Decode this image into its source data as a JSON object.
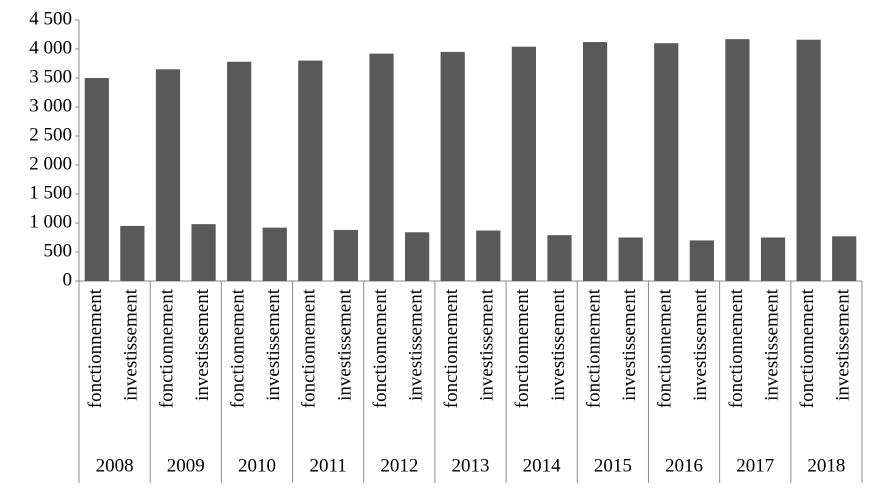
{
  "chart_data": {
    "type": "bar",
    "categories": [
      "2008",
      "2009",
      "2010",
      "2011",
      "2012",
      "2013",
      "2014",
      "2015",
      "2016",
      "2017",
      "2018"
    ],
    "series": [
      {
        "name": "fonctionnement",
        "color": "#595959",
        "values": [
          3500,
          3650,
          3780,
          3800,
          3920,
          3950,
          4040,
          4120,
          4100,
          4170,
          4160
        ]
      },
      {
        "name": "investissement",
        "color": "#595959",
        "values": [
          950,
          980,
          920,
          880,
          840,
          870,
          790,
          750,
          700,
          750,
          770
        ]
      }
    ],
    "ylim": [
      0,
      4500
    ],
    "yticks": [
      0,
      500,
      {
        "value": 1000,
        "label": "1 000"
      },
      {
        "value": 1500,
        "label": "1 500"
      },
      {
        "value": 2000,
        "label": "2 000"
      },
      {
        "value": 2500,
        "label": "2 500"
      },
      {
        "value": 3000,
        "label": "3 000"
      },
      {
        "value": 3500,
        "label": "3 500"
      },
      {
        "value": 4000,
        "label": "4 000"
      },
      {
        "value": 4500,
        "label": "4 500"
      }
    ],
    "grid": false
  }
}
